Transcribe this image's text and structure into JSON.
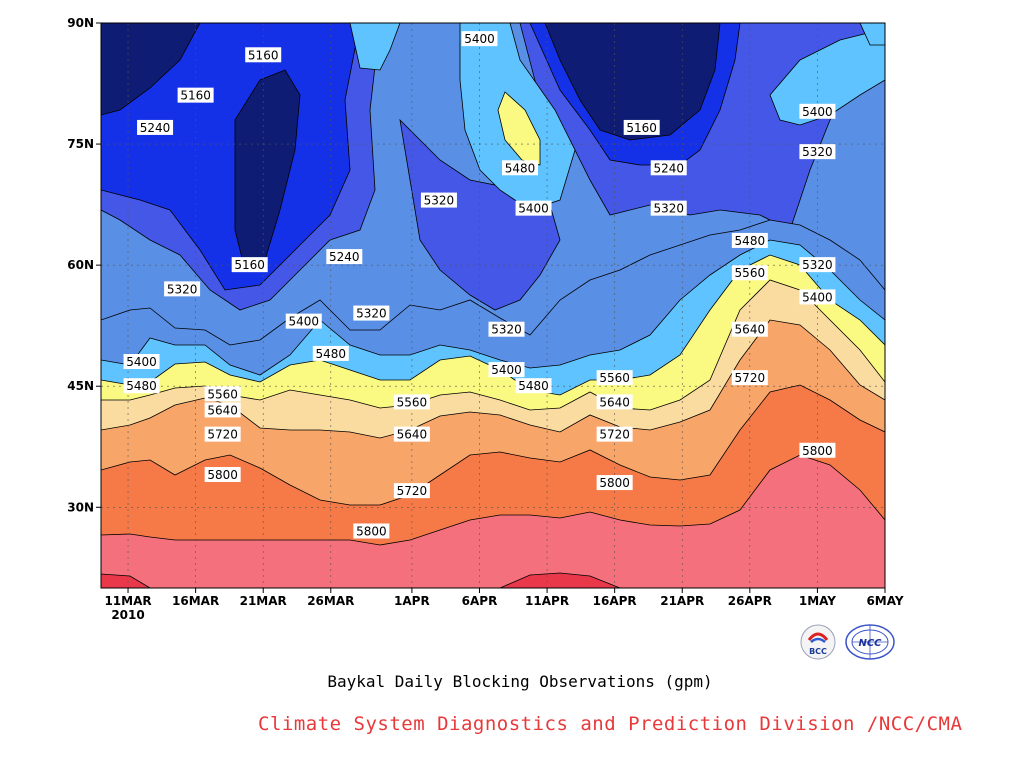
{
  "chart_data": {
    "type": "contour",
    "title": "Baykal Daily Blocking Observations (gpm)",
    "x_ticks": [
      "11MAR",
      "16MAR",
      "21MAR",
      "26MAR",
      "1APR",
      "6APR",
      "11APR",
      "16APR",
      "21APR",
      "26APR",
      "1MAY",
      "6MAY"
    ],
    "x_year_label": "2010",
    "y_ticks": [
      "30N",
      "45N",
      "60N",
      "75N",
      "90N"
    ],
    "xlim": [
      "2010-03-09",
      "2010-05-06"
    ],
    "ylim": [
      20,
      90
    ],
    "grid": true,
    "contour_levels": [
      5160,
      5240,
      5320,
      5400,
      5480,
      5560,
      5640,
      5720,
      5800,
      5880
    ],
    "fill_colors": [
      "#0f1c73",
      "#1531e8",
      "#4457e6",
      "#5a8fe6",
      "#5ec3ff",
      "#fafa82",
      "#fbdca0",
      "#f8a56a",
      "#f67a48",
      "#f4707c",
      "#e8384a"
    ],
    "contour_labels": [
      {
        "value": "5160",
        "lon_date": "2010-03-21",
        "lat": 86
      },
      {
        "value": "5160",
        "lon_date": "2010-03-16",
        "lat": 81
      },
      {
        "value": "5240",
        "lon_date": "2010-03-13",
        "lat": 77
      },
      {
        "value": "5160",
        "lon_date": "2010-03-20",
        "lat": 60
      },
      {
        "value": "5240",
        "lon_date": "2010-03-27",
        "lat": 61
      },
      {
        "value": "5320",
        "lon_date": "2010-03-15",
        "lat": 57
      },
      {
        "value": "5400",
        "lon_date": "2010-03-24",
        "lat": 53
      },
      {
        "value": "5320",
        "lon_date": "2010-03-29",
        "lat": 54
      },
      {
        "value": "5480",
        "lon_date": "2010-03-26",
        "lat": 49
      },
      {
        "value": "5400",
        "lon_date": "2010-03-12",
        "lat": 48
      },
      {
        "value": "5480",
        "lon_date": "2010-03-12",
        "lat": 45
      },
      {
        "value": "5560",
        "lon_date": "2010-03-18",
        "lat": 44
      },
      {
        "value": "5640",
        "lon_date": "2010-03-18",
        "lat": 42
      },
      {
        "value": "5720",
        "lon_date": "2010-03-18",
        "lat": 39
      },
      {
        "value": "5800",
        "lon_date": "2010-03-18",
        "lat": 34
      },
      {
        "value": "5400",
        "lon_date": "2010-04-06",
        "lat": 88
      },
      {
        "value": "5480",
        "lon_date": "2010-04-09",
        "lat": 72
      },
      {
        "value": "5400",
        "lon_date": "2010-04-10",
        "lat": 67
      },
      {
        "value": "5320",
        "lon_date": "2010-04-03",
        "lat": 68
      },
      {
        "value": "5320",
        "lon_date": "2010-04-08",
        "lat": 52
      },
      {
        "value": "5400",
        "lon_date": "2010-04-08",
        "lat": 47
      },
      {
        "value": "5480",
        "lon_date": "2010-04-10",
        "lat": 45
      },
      {
        "value": "5560",
        "lon_date": "2010-04-01",
        "lat": 43
      },
      {
        "value": "5640",
        "lon_date": "2010-04-01",
        "lat": 39
      },
      {
        "value": "5720",
        "lon_date": "2010-04-01",
        "lat": 32
      },
      {
        "value": "5800",
        "lon_date": "2010-03-29",
        "lat": 27
      },
      {
        "value": "5160",
        "lon_date": "2010-04-18",
        "lat": 77
      },
      {
        "value": "5240",
        "lon_date": "2010-04-20",
        "lat": 72
      },
      {
        "value": "5320",
        "lon_date": "2010-04-20",
        "lat": 67
      },
      {
        "value": "5560",
        "lon_date": "2010-04-16",
        "lat": 46
      },
      {
        "value": "5640",
        "lon_date": "2010-04-16",
        "lat": 43
      },
      {
        "value": "5720",
        "lon_date": "2010-04-16",
        "lat": 39
      },
      {
        "value": "5800",
        "lon_date": "2010-04-16",
        "lat": 33
      },
      {
        "value": "5480",
        "lon_date": "2010-04-26",
        "lat": 63
      },
      {
        "value": "5560",
        "lon_date": "2010-04-26",
        "lat": 59
      },
      {
        "value": "5640",
        "lon_date": "2010-04-26",
        "lat": 52
      },
      {
        "value": "5720",
        "lon_date": "2010-04-26",
        "lat": 46
      },
      {
        "value": "5800",
        "lon_date": "2010-05-01",
        "lat": 37
      },
      {
        "value": "5400",
        "lon_date": "2010-05-01",
        "lat": 79
      },
      {
        "value": "5320",
        "lon_date": "2010-05-01",
        "lat": 74
      },
      {
        "value": "5320",
        "lon_date": "2010-05-01",
        "lat": 60
      },
      {
        "value": "5400",
        "lon_date": "2010-05-01",
        "lat": 56
      }
    ]
  },
  "footer": {
    "title": "Baykal Daily Blocking Observations (gpm)",
    "credit": "Climate System Diagnostics and Prediction Division /NCC/CMA"
  },
  "logos": {
    "bcc_text": "BCC",
    "ncc_text": "NCC"
  }
}
